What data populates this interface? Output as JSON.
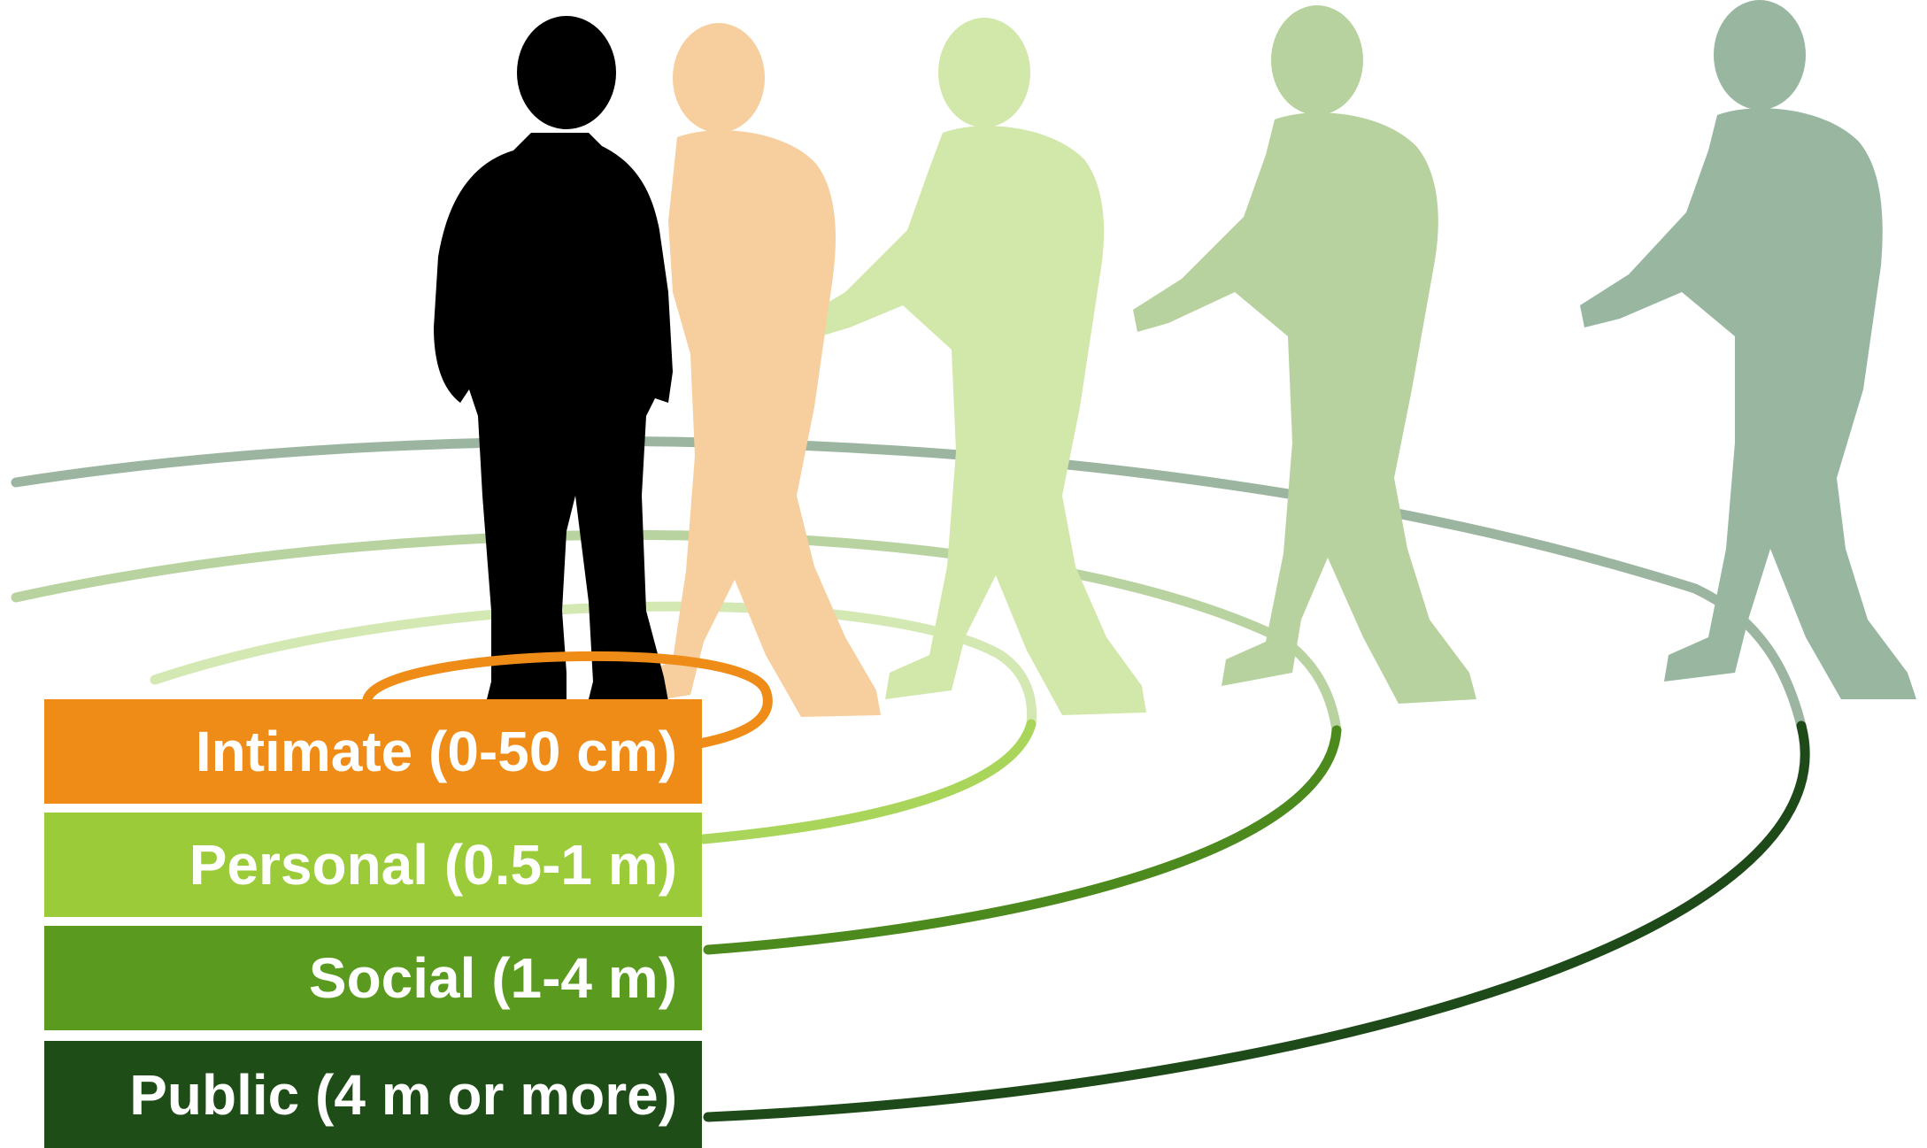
{
  "zones": [
    {
      "label": "Intimate (0-50 cm)",
      "color": "#ee8c17",
      "ring_color": "#ee8c17"
    },
    {
      "label": "Personal (0.5-1 m)",
      "color": "#9ccb3a",
      "ring_color": "#a9d65a",
      "ring_back_color": "#d4e8b4"
    },
    {
      "label": "Social (1-4 m)",
      "color": "#5a9a1e",
      "ring_color": "#4d8a1e",
      "ring_back_color": "#b8d2a0"
    },
    {
      "label": "Public (4 m or more)",
      "color": "#1f4d17",
      "ring_color": "#1d4a18",
      "ring_back_color": "#9bb5a0"
    }
  ],
  "figures": [
    {
      "name": "center-person",
      "color": "#000000"
    },
    {
      "name": "intimate-walker",
      "color": "#f7cf9e"
    },
    {
      "name": "personal-walker",
      "color": "#d2e8aa"
    },
    {
      "name": "social-walker",
      "color": "#b7d29e"
    },
    {
      "name": "public-walker",
      "color": "#98b6a0"
    }
  ]
}
